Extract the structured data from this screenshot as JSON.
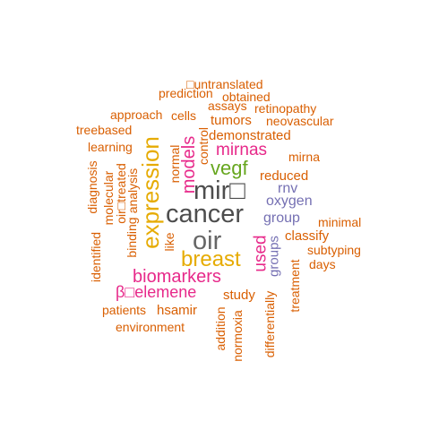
{
  "colors": {
    "orange": "#d95f02",
    "magenta": "#e7298a",
    "gold": "#e6ab02",
    "green": "#66a61e",
    "purple": "#7570b3",
    "gray": "#666666",
    "dark": "#4d4d4d"
  },
  "words": [
    {
      "text": "cancer",
      "color": "dark"
    },
    {
      "text": "mir□",
      "color": "dark"
    },
    {
      "text": "oir",
      "color": "gray"
    },
    {
      "text": "expression",
      "color": "gold"
    },
    {
      "text": "breast",
      "color": "gold"
    },
    {
      "text": "biomarkers",
      "color": "magenta"
    },
    {
      "text": "vegf",
      "color": "green"
    },
    {
      "text": "models",
      "color": "magenta"
    },
    {
      "text": "mirnas",
      "color": "magenta"
    },
    {
      "text": "used",
      "color": "magenta"
    },
    {
      "text": "β□elemene",
      "color": "magenta"
    },
    {
      "text": "oxygen",
      "color": "purple"
    },
    {
      "text": "group",
      "color": "purple"
    },
    {
      "text": "rnv",
      "color": "purple"
    },
    {
      "text": "groups",
      "color": "purple"
    },
    {
      "text": "□untranslated",
      "color": "orange"
    },
    {
      "text": "prediction",
      "color": "orange"
    },
    {
      "text": "obtained",
      "color": "orange"
    },
    {
      "text": "assays",
      "color": "orange"
    },
    {
      "text": "retinopathy",
      "color": "orange"
    },
    {
      "text": "approach",
      "color": "orange"
    },
    {
      "text": "cells",
      "color": "orange"
    },
    {
      "text": "tumors",
      "color": "orange"
    },
    {
      "text": "neovascular",
      "color": "orange"
    },
    {
      "text": "treebased",
      "color": "orange"
    },
    {
      "text": "demonstrated",
      "color": "orange"
    },
    {
      "text": "learning",
      "color": "orange"
    },
    {
      "text": "mirna",
      "color": "orange"
    },
    {
      "text": "reduced",
      "color": "orange"
    },
    {
      "text": "minimal",
      "color": "orange"
    },
    {
      "text": "classify",
      "color": "orange"
    },
    {
      "text": "subtyping",
      "color": "orange"
    },
    {
      "text": "days",
      "color": "orange"
    },
    {
      "text": "study",
      "color": "orange"
    },
    {
      "text": "patients",
      "color": "orange"
    },
    {
      "text": "hsamir",
      "color": "orange"
    },
    {
      "text": "environment",
      "color": "orange"
    },
    {
      "text": "control",
      "color": "orange"
    },
    {
      "text": "normal",
      "color": "orange"
    },
    {
      "text": "diagnosis",
      "color": "orange"
    },
    {
      "text": "molecular",
      "color": "orange"
    },
    {
      "text": "oir□treated",
      "color": "orange"
    },
    {
      "text": "analysis",
      "color": "orange"
    },
    {
      "text": "binding",
      "color": "orange"
    },
    {
      "text": "identified",
      "color": "orange"
    },
    {
      "text": "like",
      "color": "orange"
    },
    {
      "text": "addition",
      "color": "orange"
    },
    {
      "text": "normoxia",
      "color": "orange"
    },
    {
      "text": "differentially",
      "color": "orange"
    },
    {
      "text": "treatment",
      "color": "orange"
    }
  ]
}
